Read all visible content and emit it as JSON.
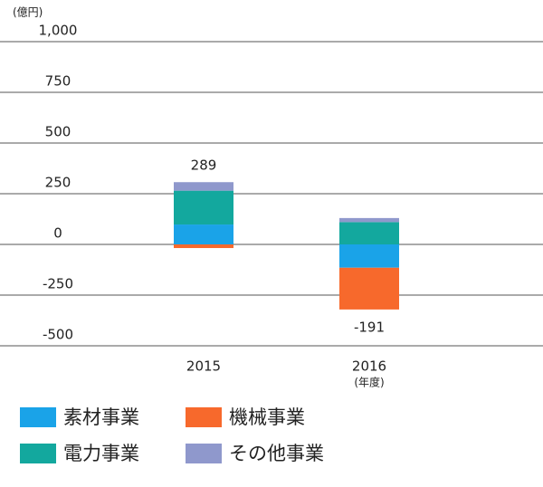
{
  "chart_data": {
    "type": "stacked_bar",
    "unit_label": "(億円)",
    "x_note": "(年度)",
    "categories": [
      "2015",
      "2016"
    ],
    "series": [
      {
        "name": "素材事業",
        "color": "#1aa3e8",
        "values": [
          98,
          -115
        ]
      },
      {
        "name": "機械事業",
        "color": "#f7692c",
        "values": [
          -18,
          -206
        ]
      },
      {
        "name": "電力事業",
        "color": "#13a89e",
        "values": [
          167,
          110
        ]
      },
      {
        "name": "その他事業",
        "color": "#8f98cc",
        "values": [
          42,
          20
        ]
      }
    ],
    "totals": [
      289,
      -191
    ],
    "ylim": [
      -500,
      1000
    ],
    "yticks": [
      -500,
      -250,
      0,
      250,
      500,
      750,
      {
        "value": 1000,
        "label": "1,000"
      }
    ],
    "grid": true
  }
}
